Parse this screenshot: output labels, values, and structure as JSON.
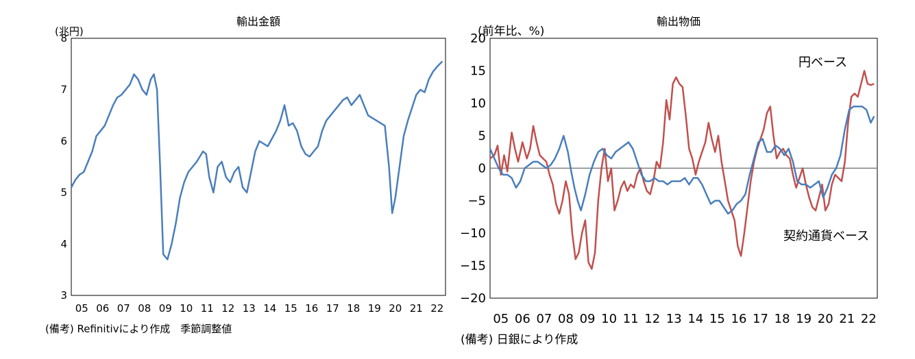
{
  "chart_data": [
    {
      "type": "line",
      "title": "輸出金額",
      "ylabel": "(兆円)",
      "ylim": [
        3,
        8
      ],
      "yticks": [
        3,
        4,
        5,
        6,
        7,
        8
      ],
      "xlim": [
        2005,
        2022.9
      ],
      "xticks": [
        "05",
        "06",
        "07",
        "08",
        "09",
        "10",
        "11",
        "12",
        "13",
        "14",
        "15",
        "16",
        "17",
        "18",
        "19",
        "20",
        "21",
        "22"
      ],
      "grid": false,
      "color": "#4a7ebb",
      "note": "(備考) Refinitivにより作成　季節調整値",
      "series": [
        {
          "name": "",
          "x": [
            2005.0,
            2005.2,
            2005.4,
            2005.6,
            2005.8,
            2006.0,
            2006.2,
            2006.4,
            2006.6,
            2006.8,
            2007.0,
            2007.2,
            2007.4,
            2007.6,
            2007.8,
            2008.0,
            2008.2,
            2008.4,
            2008.6,
            2008.8,
            2008.95,
            2009.1,
            2009.25,
            2009.4,
            2009.6,
            2009.8,
            2010.0,
            2010.2,
            2010.4,
            2010.6,
            2010.8,
            2011.0,
            2011.15,
            2011.3,
            2011.45,
            2011.6,
            2011.8,
            2012.0,
            2012.2,
            2012.4,
            2012.6,
            2012.8,
            2013.0,
            2013.2,
            2013.4,
            2013.6,
            2013.8,
            2014.0,
            2014.2,
            2014.4,
            2014.6,
            2014.8,
            2015.0,
            2015.2,
            2015.4,
            2015.6,
            2015.8,
            2016.0,
            2016.2,
            2016.4,
            2016.6,
            2016.8,
            2017.0,
            2017.2,
            2017.4,
            2017.6,
            2017.8,
            2018.0,
            2018.2,
            2018.4,
            2018.6,
            2018.8,
            2019.0,
            2019.2,
            2019.4,
            2019.6,
            2019.8,
            2020.0,
            2020.2,
            2020.35,
            2020.5,
            2020.7,
            2020.9,
            2021.1,
            2021.3,
            2021.5,
            2021.7,
            2021.9,
            2022.1,
            2022.3,
            2022.5,
            2022.75
          ],
          "y": [
            5.1,
            5.25,
            5.35,
            5.4,
            5.6,
            5.8,
            6.1,
            6.2,
            6.3,
            6.5,
            6.7,
            6.85,
            6.9,
            7.0,
            7.1,
            7.3,
            7.2,
            7.0,
            6.9,
            7.2,
            7.3,
            7.0,
            5.5,
            3.8,
            3.7,
            4.0,
            4.4,
            4.9,
            5.2,
            5.4,
            5.5,
            5.6,
            5.7,
            5.8,
            5.75,
            5.3,
            5.0,
            5.5,
            5.6,
            5.3,
            5.2,
            5.4,
            5.5,
            5.1,
            5.0,
            5.4,
            5.8,
            6.0,
            5.95,
            5.9,
            6.05,
            6.2,
            6.4,
            6.7,
            6.3,
            6.35,
            6.2,
            5.9,
            5.75,
            5.7,
            5.8,
            5.9,
            6.2,
            6.4,
            6.5,
            6.6,
            6.7,
            6.8,
            6.85,
            6.7,
            6.8,
            6.9,
            6.7,
            6.5,
            6.45,
            6.4,
            6.35,
            6.3,
            5.5,
            4.6,
            4.9,
            5.5,
            6.1,
            6.4,
            6.65,
            6.9,
            7.0,
            6.95,
            7.2,
            7.35,
            7.45,
            7.55
          ]
        }
      ]
    },
    {
      "type": "line",
      "title": "輸出物価",
      "ylabel": "(前年比、%)",
      "ylim": [
        -20,
        20
      ],
      "yticks": [
        -20,
        -15,
        -10,
        -5,
        0,
        5,
        10,
        15,
        20
      ],
      "xlim": [
        2005,
        2022.9
      ],
      "xticks": [
        "05",
        "06",
        "07",
        "08",
        "09",
        "10",
        "11",
        "12",
        "13",
        "14",
        "15",
        "16",
        "17",
        "18",
        "19",
        "20",
        "21",
        "22"
      ],
      "grid": false,
      "zero_line": true,
      "note": "(備考) 日銀により作成",
      "series": [
        {
          "name": "円ベース",
          "color": "#c0504d",
          "x": [
            2005.0,
            2005.2,
            2005.35,
            2005.5,
            2005.65,
            2005.8,
            2006.0,
            2006.15,
            2006.3,
            2006.5,
            2006.7,
            2006.85,
            2007.0,
            2007.15,
            2007.3,
            2007.45,
            2007.6,
            2007.75,
            2007.9,
            2008.05,
            2008.2,
            2008.35,
            2008.5,
            2008.65,
            2008.8,
            2008.95,
            2009.1,
            2009.25,
            2009.4,
            2009.55,
            2009.7,
            2009.85,
            2010.0,
            2010.15,
            2010.3,
            2010.45,
            2010.6,
            2010.75,
            2010.9,
            2011.05,
            2011.2,
            2011.35,
            2011.5,
            2011.65,
            2011.8,
            2011.95,
            2012.1,
            2012.25,
            2012.4,
            2012.55,
            2012.7,
            2012.85,
            2013.0,
            2013.15,
            2013.3,
            2013.45,
            2013.6,
            2013.75,
            2013.9,
            2014.05,
            2014.2,
            2014.35,
            2014.5,
            2014.65,
            2014.8,
            2014.95,
            2015.1,
            2015.25,
            2015.4,
            2015.55,
            2015.7,
            2015.85,
            2016.0,
            2016.15,
            2016.3,
            2016.45,
            2016.6,
            2016.75,
            2016.9,
            2017.05,
            2017.2,
            2017.35,
            2017.5,
            2017.65,
            2017.8,
            2017.95,
            2018.1,
            2018.25,
            2018.4,
            2018.55,
            2018.7,
            2018.85,
            2019.0,
            2019.15,
            2019.3,
            2019.45,
            2019.6,
            2019.75,
            2019.9,
            2020.05,
            2020.2,
            2020.35,
            2020.5,
            2020.65,
            2020.8,
            2020.95,
            2021.1,
            2021.25,
            2021.4,
            2021.55,
            2021.7,
            2021.85,
            2022.0,
            2022.15,
            2022.3,
            2022.45,
            2022.6,
            2022.75
          ],
          "y": [
            1.5,
            2.0,
            3.5,
            -1.0,
            2.0,
            -0.5,
            5.5,
            3.0,
            1.0,
            4.0,
            1.5,
            3.0,
            6.5,
            4.0,
            2.0,
            1.5,
            1.0,
            -1.0,
            -2.5,
            -5.5,
            -7.0,
            -5.0,
            -2.0,
            -4.0,
            -10.0,
            -14.0,
            -13.0,
            -10.0,
            -8.0,
            -14.5,
            -15.5,
            -13.0,
            -5.0,
            0.0,
            3.0,
            -2.0,
            0.0,
            -6.5,
            -5.0,
            -3.0,
            -2.0,
            -3.5,
            -2.5,
            -3.0,
            -1.0,
            0.0,
            -2.0,
            -3.5,
            -4.0,
            -2.0,
            1.0,
            0.0,
            4.0,
            10.5,
            7.5,
            13.0,
            14.0,
            13.0,
            12.5,
            8.0,
            3.0,
            1.5,
            -1.0,
            1.0,
            2.5,
            4.0,
            7.0,
            4.5,
            2.5,
            5.0,
            1.0,
            -2.0,
            -5.0,
            -6.5,
            -8.0,
            -12.0,
            -13.5,
            -10.0,
            -6.0,
            -2.0,
            1.0,
            3.0,
            4.5,
            6.0,
            8.5,
            9.5,
            5.0,
            1.5,
            2.5,
            3.0,
            2.0,
            1.5,
            -1.0,
            -3.0,
            -1.5,
            0.0,
            -2.5,
            -4.5,
            -6.0,
            -6.5,
            -4.5,
            -2.5,
            -6.5,
            -5.5,
            -2.5,
            -1.0,
            -1.5,
            -2.0,
            1.0,
            7.0,
            11.0,
            11.5,
            11.0,
            13.0,
            15.0,
            13.0,
            12.8,
            13.0
          ]
        },
        {
          "name": "契約通貨ベース",
          "color": "#4a7ebb",
          "x": [
            2005.0,
            2005.2,
            2005.4,
            2005.6,
            2005.8,
            2006.0,
            2006.2,
            2006.4,
            2006.6,
            2006.8,
            2007.0,
            2007.2,
            2007.4,
            2007.6,
            2007.8,
            2008.0,
            2008.2,
            2008.4,
            2008.6,
            2008.75,
            2008.9,
            2009.05,
            2009.2,
            2009.4,
            2009.6,
            2009.8,
            2010.0,
            2010.2,
            2010.4,
            2010.6,
            2010.8,
            2011.0,
            2011.2,
            2011.4,
            2011.6,
            2011.8,
            2012.0,
            2012.2,
            2012.4,
            2012.6,
            2012.8,
            2013.0,
            2013.2,
            2013.4,
            2013.6,
            2013.8,
            2014.0,
            2014.2,
            2014.4,
            2014.6,
            2014.8,
            2015.0,
            2015.2,
            2015.4,
            2015.6,
            2015.8,
            2016.0,
            2016.2,
            2016.4,
            2016.6,
            2016.8,
            2017.0,
            2017.2,
            2017.4,
            2017.6,
            2017.8,
            2018.0,
            2018.2,
            2018.4,
            2018.6,
            2018.8,
            2019.0,
            2019.2,
            2019.4,
            2019.6,
            2019.8,
            2020.0,
            2020.2,
            2020.4,
            2020.6,
            2020.8,
            2021.0,
            2021.2,
            2021.4,
            2021.6,
            2021.8,
            2022.0,
            2022.2,
            2022.4,
            2022.6,
            2022.75
          ],
          "y": [
            3.0,
            1.5,
            0.0,
            -1.0,
            -1.0,
            -1.5,
            -3.0,
            -2.0,
            0.0,
            0.5,
            1.0,
            1.0,
            0.5,
            0.0,
            0.5,
            1.5,
            3.0,
            5.0,
            2.5,
            -0.5,
            -3.0,
            -5.0,
            -6.5,
            -4.0,
            -1.0,
            1.0,
            2.5,
            3.0,
            2.0,
            1.5,
            2.5,
            3.0,
            3.5,
            4.0,
            3.0,
            1.0,
            -1.0,
            -2.0,
            -2.0,
            -1.5,
            -2.0,
            -2.0,
            -2.5,
            -2.0,
            -2.0,
            -2.0,
            -1.5,
            -2.5,
            -1.5,
            -1.5,
            -2.5,
            -4.0,
            -5.5,
            -5.0,
            -5.0,
            -6.0,
            -7.0,
            -6.5,
            -5.5,
            -5.0,
            -4.0,
            -1.0,
            1.5,
            4.0,
            4.5,
            2.5,
            2.5,
            3.5,
            3.0,
            2.0,
            3.0,
            1.0,
            -2.0,
            -2.5,
            -2.5,
            -3.0,
            -2.5,
            -2.0,
            -4.5,
            -3.0,
            -1.0,
            0.0,
            2.0,
            6.0,
            9.0,
            9.5,
            9.5,
            9.5,
            9.0,
            7.0,
            8.0
          ]
        }
      ]
    }
  ]
}
